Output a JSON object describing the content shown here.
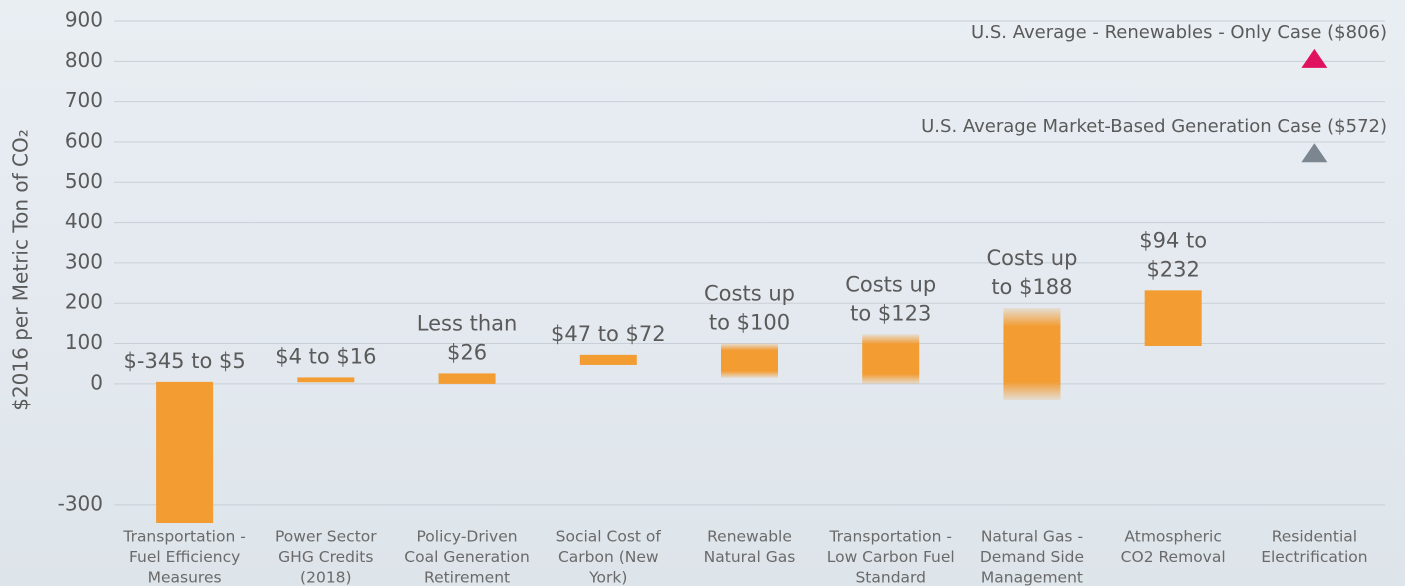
{
  "chart_data": {
    "type": "floating-bar",
    "y_label": "$2016 per Metric Ton of CO₂",
    "categories": [
      [
        "Transportation -",
        "Fuel Efficiency",
        "Measures"
      ],
      [
        "Power Sector",
        "GHG Credits",
        "(2018)"
      ],
      [
        "Policy-Driven",
        "Coal Generation",
        "Retirement"
      ],
      [
        "Social Cost of",
        "Carbon (New",
        "York)"
      ],
      [
        "Renewable",
        "Natural Gas"
      ],
      [
        "Transportation -",
        "Low Carbon Fuel",
        "Standard"
      ],
      [
        "Natural Gas -",
        "Demand Side",
        "Management"
      ],
      [
        "Atmospheric",
        "CO2 Removal"
      ],
      [
        "Residential",
        "Electrification"
      ]
    ],
    "low": [
      -345,
      4,
      0,
      47,
      15,
      0,
      -40,
      94,
      null
    ],
    "high": [
      5,
      16,
      26,
      72,
      100,
      123,
      188,
      232,
      null
    ],
    "value_labels": [
      [
        "$-345 to $5"
      ],
      [
        "$4 to $16"
      ],
      [
        "Less than",
        "$26"
      ],
      [
        "$47 to $72"
      ],
      [
        "Costs up",
        "to $100"
      ],
      [
        "Costs up",
        "to $123"
      ],
      [
        "Costs up",
        "to $188"
      ],
      [
        "$94 to",
        "$232"
      ],
      null
    ],
    "faded": [
      false,
      false,
      false,
      false,
      true,
      true,
      true,
      false,
      false
    ],
    "color": "#f39c32",
    "markers": [
      {
        "category": 8,
        "value": 806,
        "label": "U.S. Average - Renewables - Only Case ($806)",
        "color": "#e0115f"
      },
      {
        "category": 8,
        "value": 572,
        "label": "U.S. Average Market-Based Generation Case ($572)",
        "color": "#7b8691"
      }
    ],
    "ylim": [
      -350,
      900
    ],
    "yticks": [
      -300,
      0,
      100,
      200,
      300,
      400,
      500,
      600,
      700,
      800,
      900
    ],
    "grid": true
  }
}
